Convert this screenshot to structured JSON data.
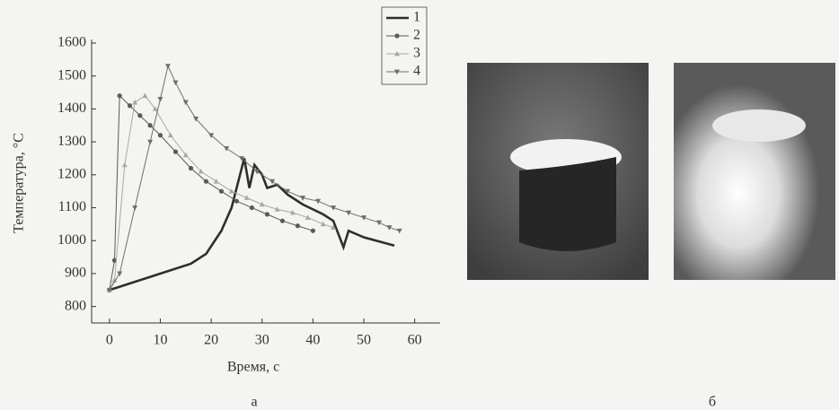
{
  "chart_data": {
    "type": "line",
    "x_label": "Время, с",
    "y_label": "Температура, °C",
    "panel_a": "а",
    "panel_b": "б",
    "xlim": [
      -3.5,
      65
    ],
    "ylim": [
      750,
      1600
    ],
    "xticks": [
      0,
      10,
      20,
      30,
      40,
      50,
      60
    ],
    "yticks": [
      800,
      900,
      1000,
      1100,
      1200,
      1300,
      1400,
      1500,
      1600
    ],
    "series": [
      {
        "name": "1",
        "color": "#2e2e2e",
        "marker": "none",
        "x": [
          0,
          8,
          16,
          19,
          22,
          24,
          26.5,
          27.5,
          28.5,
          30,
          31,
          33,
          35,
          38,
          42,
          44,
          46,
          47,
          50,
          56
        ],
        "values": [
          850,
          890,
          930,
          960,
          1030,
          1100,
          1250,
          1160,
          1230,
          1200,
          1160,
          1170,
          1140,
          1110,
          1080,
          1060,
          980,
          1030,
          1010,
          985
        ]
      },
      {
        "name": "2",
        "color": "#5a5a5a",
        "marker": "circle",
        "x": [
          0,
          1,
          2,
          4,
          6,
          8,
          10,
          13,
          16,
          19,
          22,
          25,
          28,
          31,
          34,
          37,
          40
        ],
        "values": [
          850,
          940,
          1440,
          1410,
          1380,
          1350,
          1320,
          1270,
          1220,
          1180,
          1150,
          1120,
          1100,
          1080,
          1060,
          1045,
          1030
        ]
      },
      {
        "name": "3",
        "color": "#a8a8a8",
        "marker": "triangle",
        "x": [
          0,
          1,
          3,
          5,
          7,
          9,
          12,
          15,
          18,
          21,
          24,
          27,
          30,
          33,
          36,
          39,
          42,
          44
        ],
        "values": [
          850,
          880,
          1230,
          1420,
          1440,
          1400,
          1320,
          1260,
          1210,
          1180,
          1150,
          1130,
          1110,
          1095,
          1085,
          1070,
          1050,
          1040
        ]
      },
      {
        "name": "4",
        "color": "#6e6e6e",
        "marker": "down",
        "x": [
          0,
          2,
          5,
          8,
          10,
          11.5,
          13,
          15,
          17,
          20,
          23,
          26,
          29,
          32,
          35,
          38,
          41,
          44,
          47,
          50,
          53,
          55,
          57
        ],
        "values": [
          850,
          900,
          1100,
          1300,
          1430,
          1530,
          1480,
          1420,
          1370,
          1320,
          1280,
          1250,
          1210,
          1180,
          1150,
          1130,
          1120,
          1100,
          1085,
          1070,
          1055,
          1040,
          1030
        ]
      }
    ]
  }
}
